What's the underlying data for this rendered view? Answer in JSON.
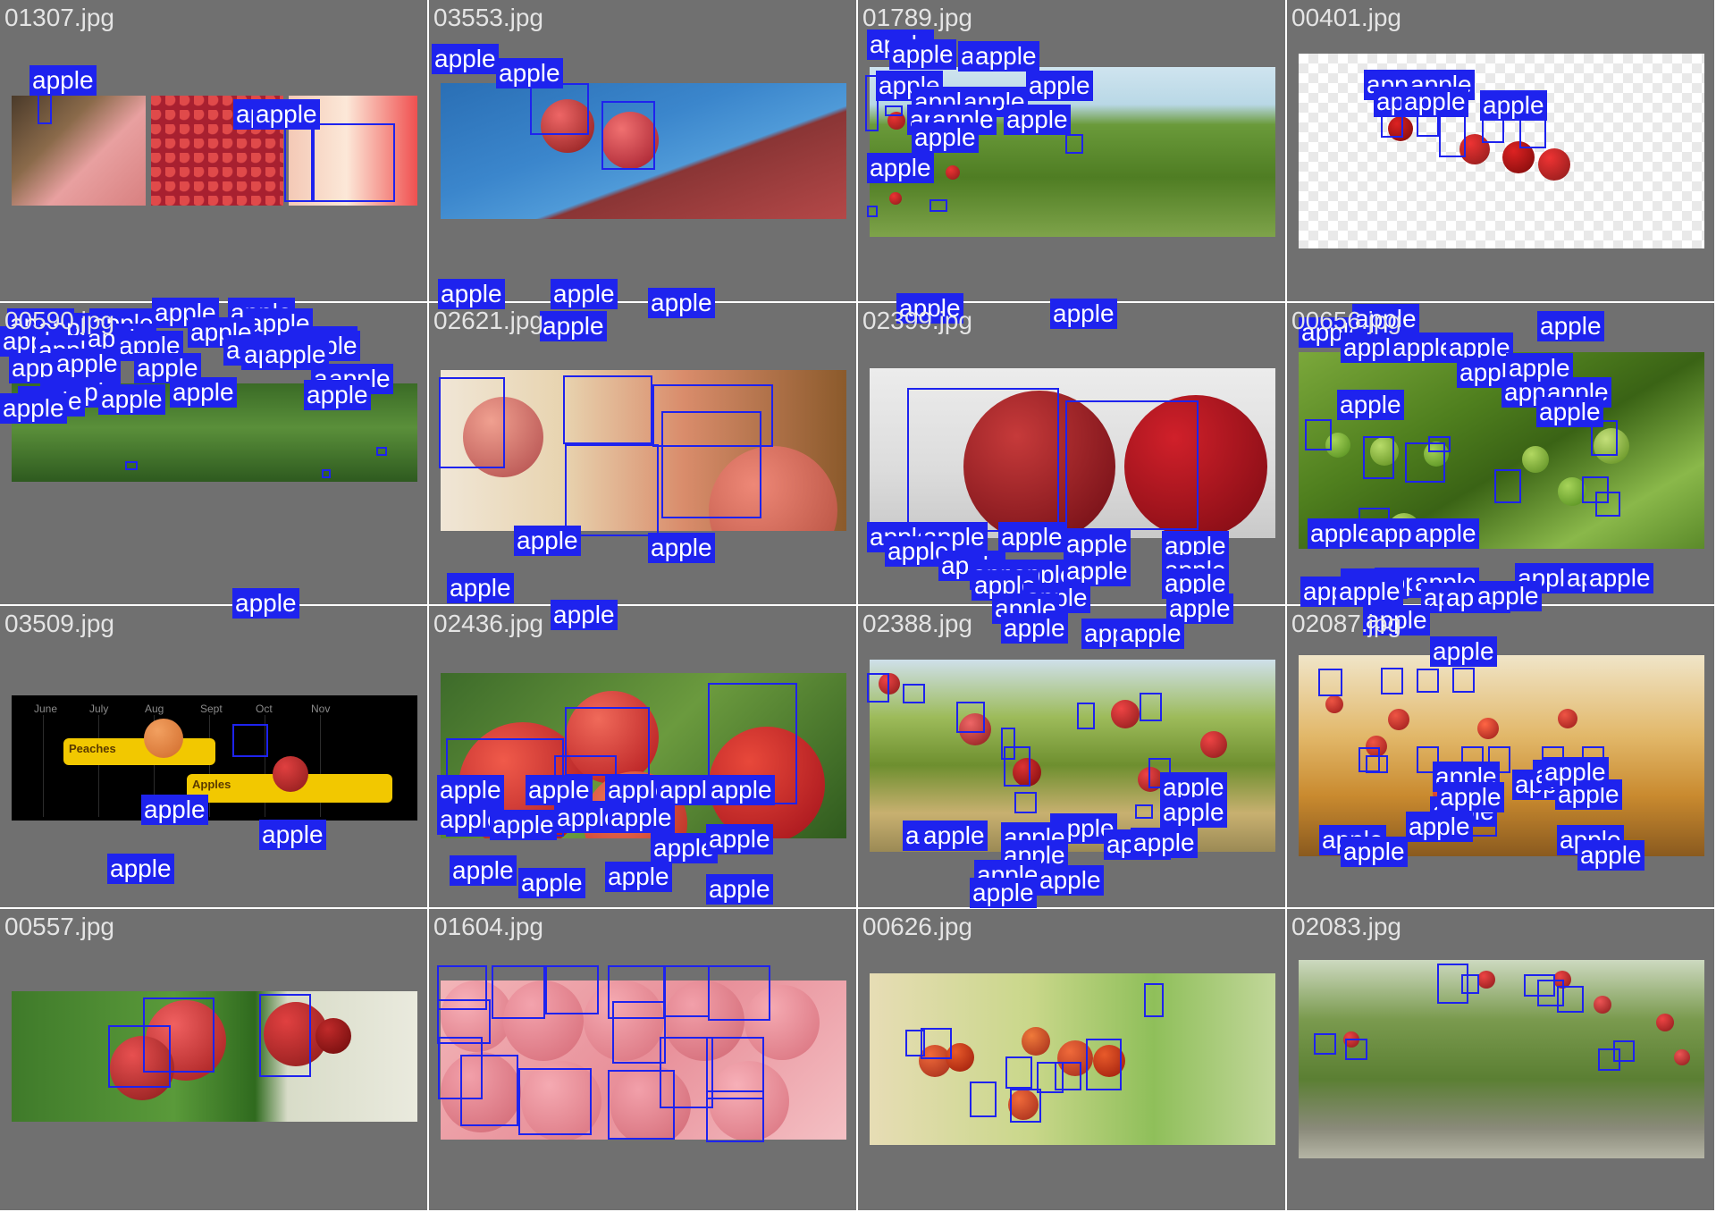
{
  "label_text": "apple",
  "colors": {
    "background": "#707070",
    "box": "#1e23ee",
    "label_bg": "#1e23ee",
    "label_fg": "#ffffff",
    "filename": "#e4e4e4"
  },
  "tiles": [
    {
      "filename": "01307.jpg"
    },
    {
      "filename": "03553.jpg"
    },
    {
      "filename": "01789.jpg"
    },
    {
      "filename": "00401.jpg"
    },
    {
      "filename": "00590.jpg"
    },
    {
      "filename": "02621.jpg"
    },
    {
      "filename": "02399.jpg"
    },
    {
      "filename": "00656.jpg"
    },
    {
      "filename": "03509.jpg",
      "timeline": {
        "months": [
          "June",
          "July",
          "Aug",
          "Sept",
          "Oct",
          "Nov"
        ],
        "bars": [
          "Peaches",
          "Apples"
        ]
      }
    },
    {
      "filename": "02436.jpg"
    },
    {
      "filename": "02388.jpg"
    },
    {
      "filename": "02087.jpg"
    },
    {
      "filename": "00557.jpg"
    },
    {
      "filename": "01604.jpg"
    },
    {
      "filename": "00626.jpg"
    },
    {
      "filename": "02083.jpg"
    }
  ]
}
